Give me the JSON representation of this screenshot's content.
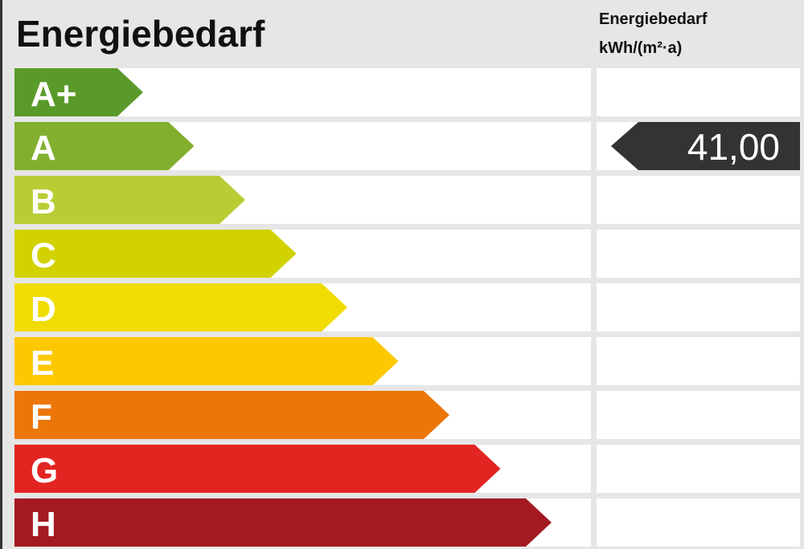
{
  "title": "Energiebedarf",
  "column_header": {
    "line1": "Energiebedarf",
    "line2": "kWh/(m²·a)"
  },
  "classes": [
    {
      "label": "A+",
      "color": "#5a9a2a"
    },
    {
      "label": "A",
      "color": "#82b02e",
      "value": "41,00"
    },
    {
      "label": "B",
      "color": "#b8cd34"
    },
    {
      "label": "C",
      "color": "#d2d200"
    },
    {
      "label": "D",
      "color": "#f0dc00"
    },
    {
      "label": "E",
      "color": "#fcc800"
    },
    {
      "label": "F",
      "color": "#ec7608"
    },
    {
      "label": "G",
      "color": "#e32522"
    },
    {
      "label": "H",
      "color": "#a31a22"
    }
  ]
}
